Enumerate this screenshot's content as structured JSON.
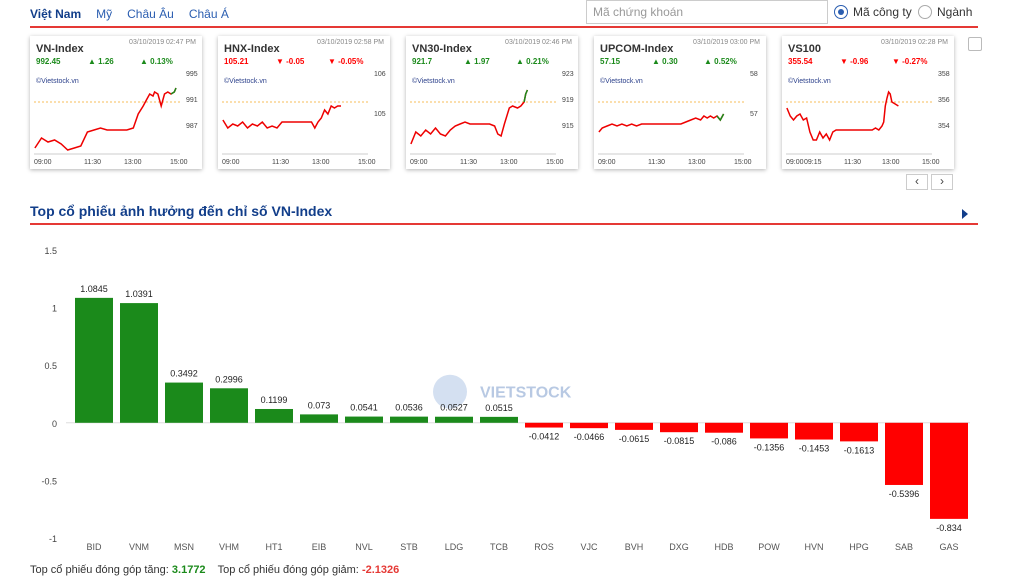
{
  "nav": {
    "tabs": [
      "Việt Nam",
      "Mỹ",
      "Châu Âu",
      "Châu Á"
    ],
    "search_placeholder": "Mã chứng khoán",
    "radio_options": [
      "Mã công ty",
      "Ngành"
    ]
  },
  "index_cards": [
    {
      "name": "VN-Index",
      "time": "03/10/2019 02:47 PM",
      "price": "992.45",
      "change": "1.26",
      "pct": "0.13%",
      "dir": "up",
      "credit": "©Vietstock.vn",
      "yticks": [
        "995",
        "991",
        "987"
      ],
      "xticks": [
        "09:00",
        "11:30",
        "13:00",
        "15:00"
      ]
    },
    {
      "name": "HNX-Index",
      "time": "03/10/2019 02:58 PM",
      "price": "105.21",
      "change": "-0.05",
      "pct": "-0.05%",
      "dir": "down",
      "credit": "©Vietstock.vn",
      "yticks": [
        "106",
        "105"
      ],
      "xticks": [
        "09:00",
        "11:30",
        "13:00",
        "15:00"
      ]
    },
    {
      "name": "VN30-Index",
      "time": "03/10/2019 02:46 PM",
      "price": "921.7",
      "change": "1.97",
      "pct": "0.21%",
      "dir": "up",
      "credit": "©Vietstock.vn",
      "yticks": [
        "923",
        "919",
        "915"
      ],
      "xticks": [
        "09:00",
        "11:30",
        "13:00",
        "15:00"
      ]
    },
    {
      "name": "UPCOM-Index",
      "time": "03/10/2019 03:00 PM",
      "price": "57.15",
      "change": "0.30",
      "pct": "0.52%",
      "dir": "up",
      "credit": "©Vietstock.vn",
      "yticks": [
        "58",
        "57"
      ],
      "xticks": [
        "09:00",
        "11:30",
        "13:00",
        "15:00"
      ]
    },
    {
      "name": "VS100",
      "time": "03/10/2019 02:28 PM",
      "price": "355.54",
      "change": "-0.96",
      "pct": "-0.27%",
      "dir": "down",
      "credit": "©Vietstock.vn",
      "yticks": [
        "358",
        "356",
        "354"
      ],
      "xticks": [
        "09:00",
        "09:15",
        "11:30",
        "13:00",
        "15:00"
      ]
    }
  ],
  "pager": {
    "prev": "‹",
    "next": "›"
  },
  "section_title": "Top cổ phiếu ảnh hưởng đến chỉ số VN-Index",
  "colors": {
    "up": "#1b8a1b",
    "down": "#ff0000",
    "accent": "#e53935",
    "link": "#123e8a"
  },
  "chart_data": {
    "type": "bar",
    "categories": [
      "BID",
      "VNM",
      "MSN",
      "VHM",
      "HT1",
      "EIB",
      "NVL",
      "STB",
      "LDG",
      "TCB",
      "ROS",
      "VJC",
      "BVH",
      "DXG",
      "HDB",
      "POW",
      "HVN",
      "HPG",
      "SAB",
      "GAS"
    ],
    "values": [
      1.0845,
      1.0391,
      0.3492,
      0.2996,
      0.1199,
      0.073,
      0.0541,
      0.0536,
      0.0527,
      0.0515,
      -0.0412,
      -0.0466,
      -0.0615,
      -0.0815,
      -0.086,
      -0.1356,
      -0.1453,
      -0.1613,
      -0.5396,
      -0.834
    ],
    "labels": [
      "1.0845",
      "1.0391",
      "0.3492",
      "0.2996",
      "0.1199",
      "0.073",
      "0.0541",
      "0.0536",
      "0.0527",
      "0.0515",
      "-0.0412",
      "-0.0466",
      "-0.0615",
      "-0.0815",
      "-0.086",
      "-0.1356",
      "-0.1453",
      "-0.1613",
      "-0.5396",
      "-0.834"
    ],
    "yticks": [
      "1.5",
      "1",
      "0.5",
      "0",
      "-0.5",
      "-1"
    ],
    "ylim": [
      -1,
      1.5
    ],
    "watermark": "VIETSTOCK",
    "grid": false
  },
  "summary": {
    "up_label": "Top cổ phiếu đóng góp tăng:",
    "up_value": "3.1772",
    "down_label": "Top cổ phiếu đóng góp giảm:",
    "down_value": "-2.1326"
  }
}
